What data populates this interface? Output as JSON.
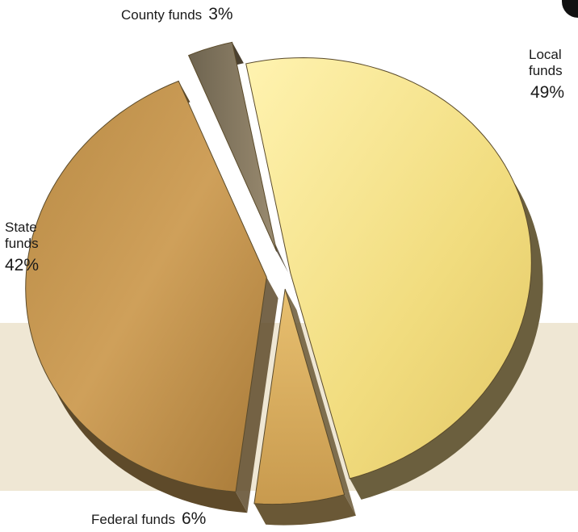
{
  "chart_data": {
    "type": "pie",
    "style": "3d-exploded",
    "slices": [
      {
        "label": "Local funds",
        "line1": "Local",
        "line2": "funds",
        "value": 49,
        "display": "49%",
        "color": "#f2de84",
        "side": "#6b5f3e"
      },
      {
        "label": "Federal funds",
        "value": 6,
        "display": "6%",
        "color": "#d9ae5c",
        "side": "#6a5836"
      },
      {
        "label": "State funds",
        "line1": "State",
        "line2": "funds",
        "value": 42,
        "display": "42%",
        "color": "#c9974a",
        "side": "#5e4a2a"
      },
      {
        "label": "County funds",
        "value": 3,
        "display": "3%",
        "color": "#8c7d63",
        "side": "#4a4030"
      }
    ]
  }
}
